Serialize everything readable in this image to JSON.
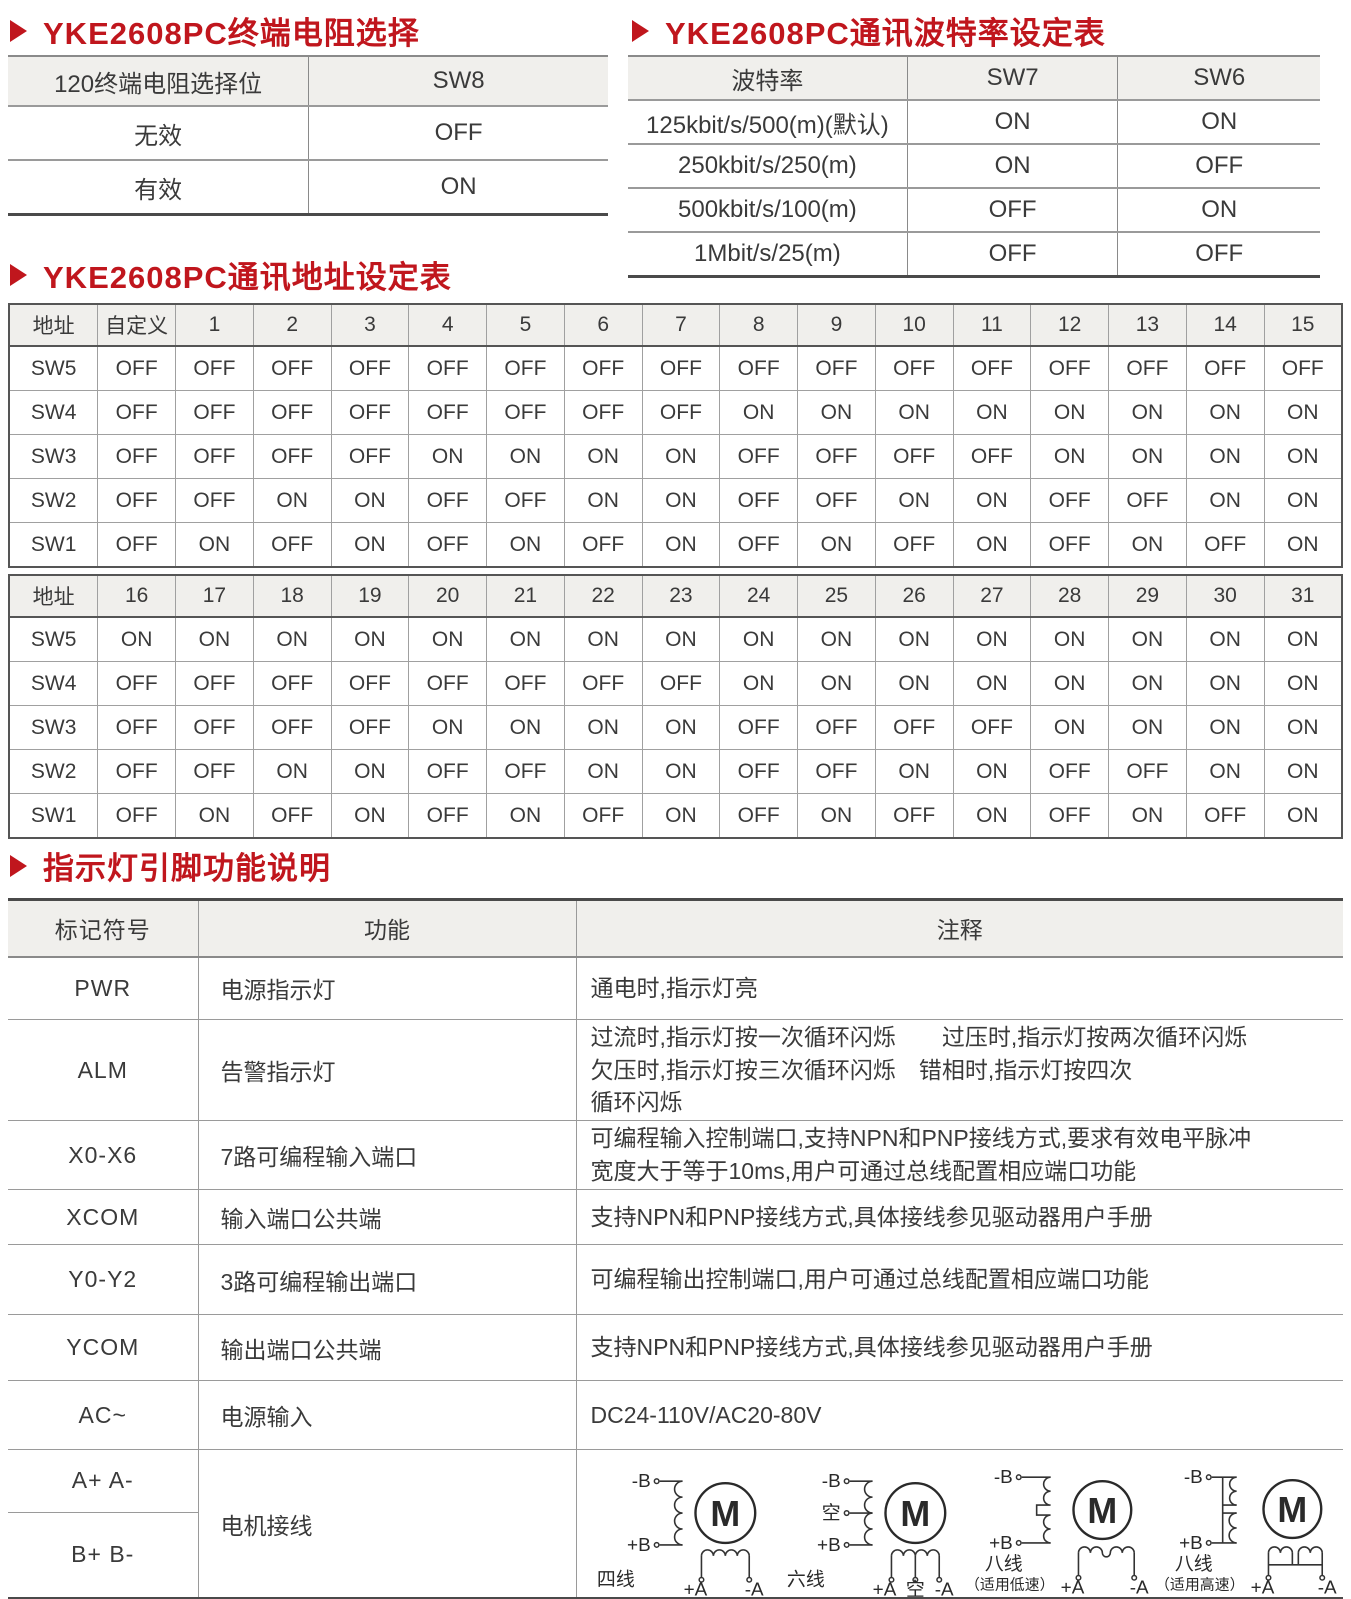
{
  "colors": {
    "accent_red": "#c0161d",
    "table_header_bg": "#f0efec",
    "grid_line": "#9a9a9a",
    "dark_line": "#4a4a4a",
    "text": "#3a3a3a"
  },
  "sections": {
    "terminal": {
      "title": "YKE2608PC终端电阻选择",
      "rows": [
        [
          "120终端电阻选择位",
          "SW8"
        ],
        [
          "无效",
          "OFF"
        ],
        [
          "有效",
          "ON"
        ]
      ]
    },
    "baud": {
      "title": "YKE2608PC通讯波特率设定表",
      "rows": [
        [
          "波特率",
          "SW7",
          "SW6"
        ],
        [
          "125kbit/s/500(m)(默认)",
          "ON",
          "ON"
        ],
        [
          "250kbit/s/250(m)",
          "ON",
          "OFF"
        ],
        [
          "500kbit/s/100(m)",
          "OFF",
          "ON"
        ],
        [
          "1Mbit/s/25(m)",
          "OFF",
          "OFF"
        ]
      ]
    },
    "address": {
      "title": "YKE2608PC通讯地址设定表",
      "block1": [
        [
          "地址",
          "自定义",
          "1",
          "2",
          "3",
          "4",
          "5",
          "6",
          "7",
          "8",
          "9",
          "10",
          "11",
          "12",
          "13",
          "14",
          "15"
        ],
        [
          "SW5",
          "OFF",
          "OFF",
          "OFF",
          "OFF",
          "OFF",
          "OFF",
          "OFF",
          "OFF",
          "OFF",
          "OFF",
          "OFF",
          "OFF",
          "OFF",
          "OFF",
          "OFF",
          "OFF"
        ],
        [
          "SW4",
          "OFF",
          "OFF",
          "OFF",
          "OFF",
          "OFF",
          "OFF",
          "OFF",
          "OFF",
          "ON",
          "ON",
          "ON",
          "ON",
          "ON",
          "ON",
          "ON",
          "ON"
        ],
        [
          "SW3",
          "OFF",
          "OFF",
          "OFF",
          "OFF",
          "ON",
          "ON",
          "ON",
          "ON",
          "OFF",
          "OFF",
          "OFF",
          "OFF",
          "ON",
          "ON",
          "ON",
          "ON"
        ],
        [
          "SW2",
          "OFF",
          "OFF",
          "ON",
          "ON",
          "OFF",
          "OFF",
          "ON",
          "ON",
          "OFF",
          "OFF",
          "ON",
          "ON",
          "OFF",
          "OFF",
          "ON",
          "ON"
        ],
        [
          "SW1",
          "OFF",
          "ON",
          "OFF",
          "ON",
          "OFF",
          "ON",
          "OFF",
          "ON",
          "OFF",
          "ON",
          "OFF",
          "ON",
          "OFF",
          "ON",
          "OFF",
          "ON"
        ]
      ],
      "block2": [
        [
          "地址",
          "16",
          "17",
          "18",
          "19",
          "20",
          "21",
          "22",
          "23",
          "24",
          "25",
          "26",
          "27",
          "28",
          "29",
          "30",
          "31"
        ],
        [
          "SW5",
          "ON",
          "ON",
          "ON",
          "ON",
          "ON",
          "ON",
          "ON",
          "ON",
          "ON",
          "ON",
          "ON",
          "ON",
          "ON",
          "ON",
          "ON",
          "ON"
        ],
        [
          "SW4",
          "OFF",
          "OFF",
          "OFF",
          "OFF",
          "OFF",
          "OFF",
          "OFF",
          "OFF",
          "ON",
          "ON",
          "ON",
          "ON",
          "ON",
          "ON",
          "ON",
          "ON"
        ],
        [
          "SW3",
          "OFF",
          "OFF",
          "OFF",
          "OFF",
          "ON",
          "ON",
          "ON",
          "ON",
          "OFF",
          "OFF",
          "OFF",
          "OFF",
          "ON",
          "ON",
          "ON",
          "ON"
        ],
        [
          "SW2",
          "OFF",
          "OFF",
          "ON",
          "ON",
          "OFF",
          "OFF",
          "ON",
          "ON",
          "OFF",
          "OFF",
          "ON",
          "ON",
          "OFF",
          "OFF",
          "ON",
          "ON"
        ],
        [
          "SW1",
          "OFF",
          "ON",
          "OFF",
          "ON",
          "OFF",
          "ON",
          "OFF",
          "ON",
          "OFF",
          "ON",
          "OFF",
          "ON",
          "OFF",
          "ON",
          "OFF",
          "ON"
        ]
      ]
    },
    "indicator": {
      "title": "指示灯引脚功能说明",
      "header": [
        "标记符号",
        "功能",
        "注释"
      ],
      "rows": [
        {
          "symbol": "PWR",
          "func": "电源指示灯",
          "note": "通电时,指示灯亮"
        },
        {
          "symbol": "ALM",
          "func": "告警指示灯",
          "note": "过流时,指示灯按一次循环闪烁　　过压时,指示灯按两次循环闪烁\n欠压时,指示灯按三次循环闪烁　错相时,指示灯按四次\n循环闪烁"
        },
        {
          "symbol": "X0-X6",
          "func": "7路可编程输入端口",
          "note": "可编程输入控制端口,支持NPN和PNP接线方式,要求有效电平脉冲\n宽度大于等于10ms,用户可通过总线配置相应端口功能"
        },
        {
          "symbol": "XCOM",
          "func": "输入端口公共端",
          "note": "支持NPN和PNP接线方式,具体接线参见驱动器用户手册"
        },
        {
          "symbol": "Y0-Y2",
          "func": "3路可编程输出端口",
          "note": "可编程输出控制端口,用户可通过总线配置相应端口功能"
        },
        {
          "symbol": "YCOM",
          "func": "输出端口公共端",
          "note": "支持NPN和PNP接线方式,具体接线参见驱动器用户手册"
        },
        {
          "symbol": "AC~",
          "func": "电源输入",
          "note": "DC24-110V/AC20-80V"
        }
      ],
      "motor": {
        "symbol_a": "A+  A-",
        "symbol_b": "B+  B-",
        "func": "电机接线",
        "diagrams": {
          "four": {
            "label": "四线",
            "t_top": "-B",
            "t_bottom": "+B",
            "motor": "M",
            "b_left": "+A",
            "b_right": "-A"
          },
          "six": {
            "label": "六线",
            "t_top": "-B",
            "t_mid": "空",
            "t_bottom": "+B",
            "motor": "M",
            "b_left": "+A",
            "b_mid": "空",
            "b_right": "-A"
          },
          "eight_low": {
            "label": "八线",
            "sublabel": "（适用低速）",
            "t_top": "-B",
            "t_bottom": "+B",
            "motor": "M",
            "b_left": "+A",
            "b_right": "-A"
          },
          "eight_high": {
            "label": "八线",
            "sublabel": "（适用高速）",
            "t_top": "-B",
            "t_bottom": "+B",
            "motor": "M",
            "b_left": "+A",
            "b_right": "-A"
          }
        }
      }
    }
  }
}
